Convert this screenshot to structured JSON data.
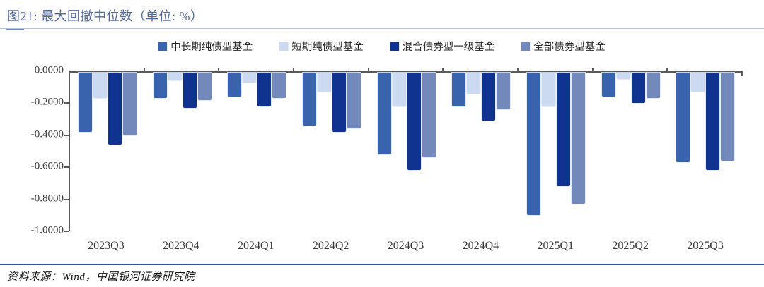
{
  "header": {
    "title": "图21: 最大回撤中位数（单位: %）"
  },
  "chart_data": {
    "type": "bar",
    "title": "最大回撤中位数（单位: %）",
    "categories": [
      "2023Q3",
      "2023Q4",
      "2024Q1",
      "2024Q2",
      "2024Q3",
      "2024Q4",
      "2025Q1",
      "2025Q2",
      "2025Q3"
    ],
    "series": [
      {
        "name": "中长期纯债型基金",
        "color": "#3A63AE",
        "values": [
          -0.37,
          -0.16,
          -0.15,
          -0.33,
          -0.51,
          -0.21,
          -0.89,
          -0.15,
          -0.56
        ]
      },
      {
        "name": "短期纯债型基金",
        "color": "#CBDAF1",
        "values": [
          -0.16,
          -0.05,
          -0.06,
          -0.12,
          -0.21,
          -0.13,
          -0.21,
          -0.04,
          -0.12
        ]
      },
      {
        "name": "混合债券型一级基金",
        "color": "#10338F",
        "values": [
          -0.45,
          -0.22,
          -0.21,
          -0.37,
          -0.61,
          -0.3,
          -0.71,
          -0.19,
          -0.61
        ]
      },
      {
        "name": "全部债券型基金",
        "color": "#7389BC",
        "values": [
          -0.39,
          -0.17,
          -0.16,
          -0.35,
          -0.53,
          -0.23,
          -0.82,
          -0.16,
          -0.55
        ]
      }
    ],
    "xlabel": "",
    "ylabel": "",
    "ylim": [
      -1.0,
      0.0
    ],
    "yticks": [
      "0.0000",
      "-0.2000",
      "-0.4000",
      "-0.6000",
      "-0.8000",
      "-1.0000"
    ],
    "grid": false,
    "legend_position": "top"
  },
  "footer": {
    "source": "资料来源：Wind，中国银河证券研究院"
  }
}
